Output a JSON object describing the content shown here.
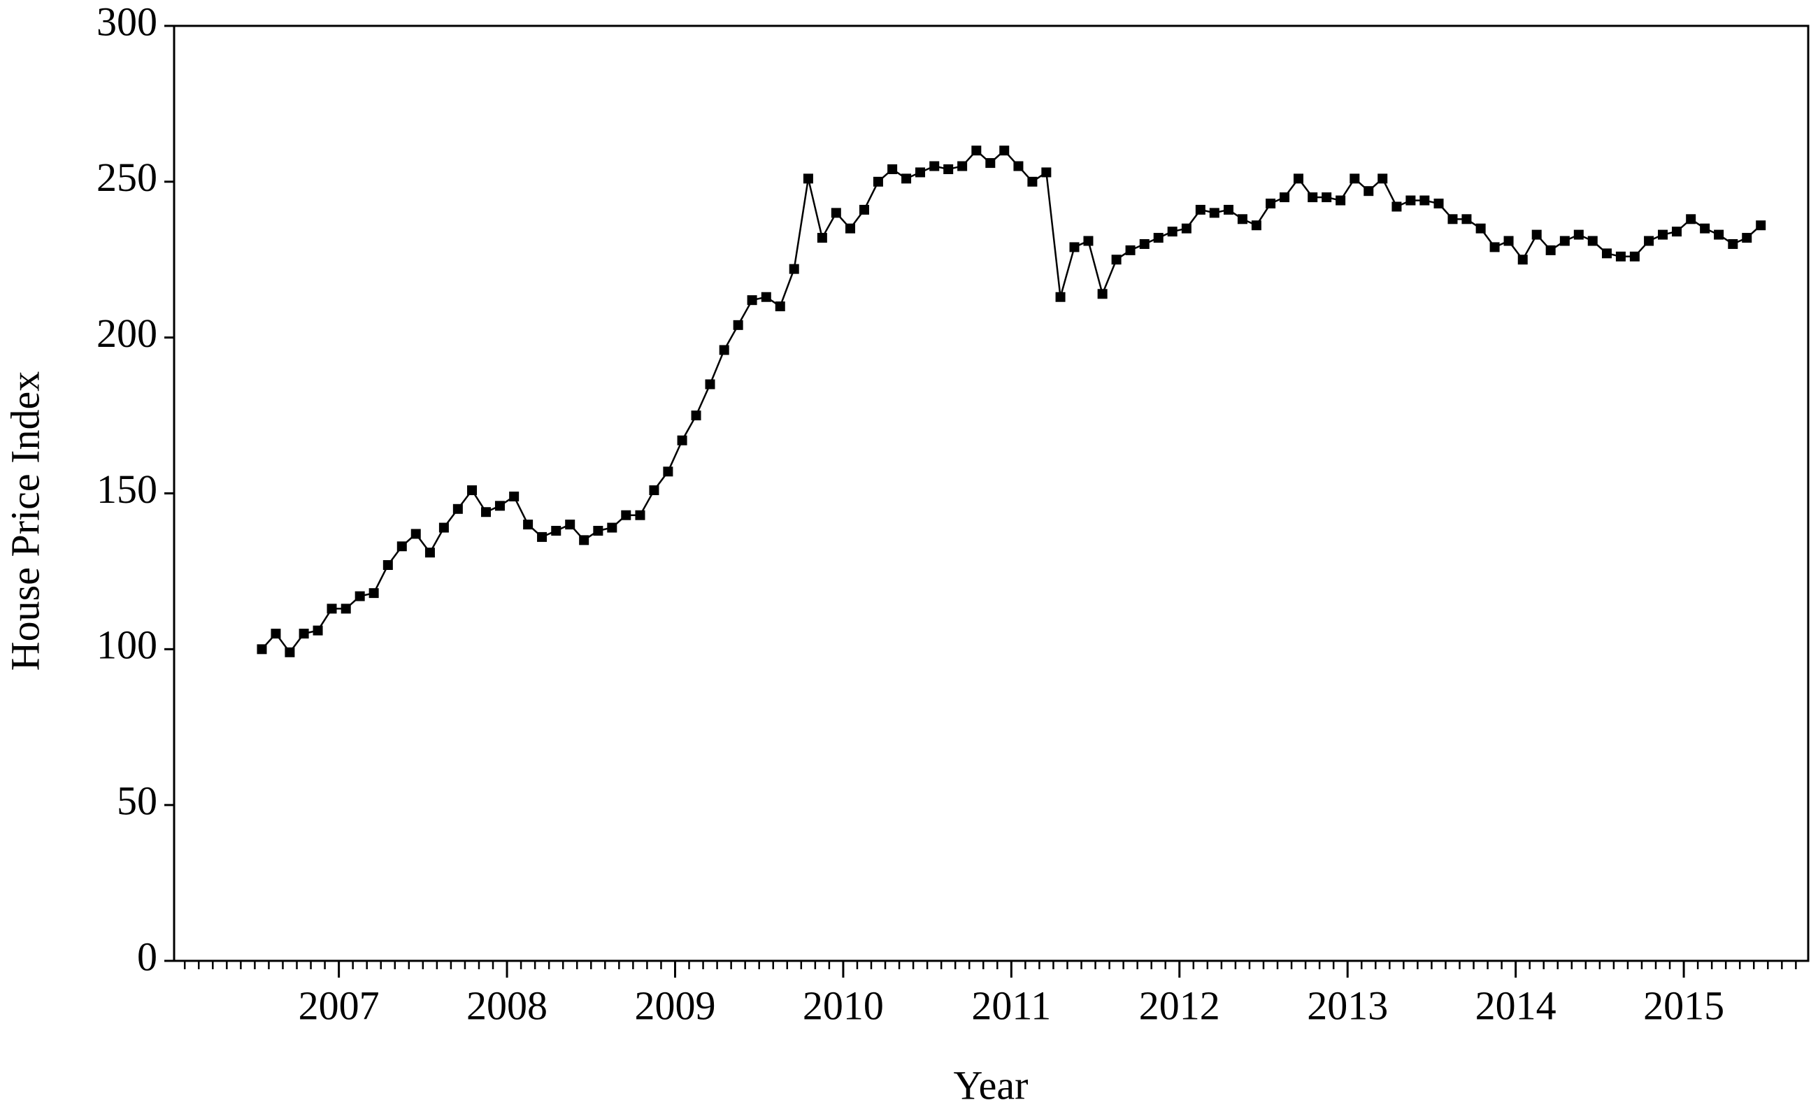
{
  "chart_data": {
    "type": "line",
    "x_label": "Year",
    "y_label": "House Price Index",
    "x": [
      2006.542,
      2006.625,
      2006.708,
      2006.792,
      2006.875,
      2006.958,
      2007.042,
      2007.125,
      2007.208,
      2007.292,
      2007.375,
      2007.458,
      2007.542,
      2007.625,
      2007.708,
      2007.792,
      2007.875,
      2007.958,
      2008.042,
      2008.125,
      2008.208,
      2008.292,
      2008.375,
      2008.458,
      2008.542,
      2008.625,
      2008.708,
      2008.792,
      2008.875,
      2008.958,
      2009.042,
      2009.125,
      2009.208,
      2009.292,
      2009.375,
      2009.458,
      2009.542,
      2009.625,
      2009.708,
      2009.792,
      2009.875,
      2009.958,
      2010.042,
      2010.125,
      2010.208,
      2010.292,
      2010.375,
      2010.458,
      2010.542,
      2010.625,
      2010.708,
      2010.792,
      2010.875,
      2010.958,
      2011.042,
      2011.125,
      2011.208,
      2011.292,
      2011.375,
      2011.458,
      2011.542,
      2011.625,
      2011.708,
      2011.792,
      2011.875,
      2011.958,
      2012.042,
      2012.125,
      2012.208,
      2012.292,
      2012.375,
      2012.458,
      2012.542,
      2012.625,
      2012.708,
      2012.792,
      2012.875,
      2012.958,
      2013.042,
      2013.125,
      2013.208,
      2013.292,
      2013.375,
      2013.458,
      2013.542,
      2013.625,
      2013.708,
      2013.792,
      2013.875,
      2013.958,
      2014.042,
      2014.125,
      2014.208,
      2014.292,
      2014.375,
      2014.458,
      2014.542,
      2014.625,
      2014.708,
      2014.792,
      2014.875,
      2014.958,
      2015.042,
      2015.125,
      2015.208,
      2015.292,
      2015.375,
      2015.458
    ],
    "series": [
      {
        "name": "House Price Index",
        "color": "#000000",
        "marker": "square",
        "values": [
          100,
          105,
          99,
          105,
          106,
          113,
          113,
          117,
          118,
          127,
          133,
          137,
          131,
          139,
          145,
          151,
          144,
          146,
          149,
          140,
          136,
          138,
          140,
          135,
          138,
          139,
          143,
          143,
          151,
          157,
          167,
          175,
          185,
          196,
          204,
          212,
          213,
          210,
          222,
          251,
          232,
          240,
          235,
          241,
          250,
          254,
          251,
          253,
          255,
          254,
          255,
          260,
          256,
          260,
          255,
          250,
          253,
          213,
          229,
          231,
          214,
          225,
          228,
          230,
          232,
          234,
          235,
          241,
          240,
          241,
          238,
          236,
          243,
          245,
          251,
          245,
          245,
          244,
          251,
          247,
          251,
          242,
          244,
          244,
          243,
          238,
          238,
          235,
          229,
          231,
          225,
          233,
          228,
          231,
          233,
          231,
          227,
          226,
          226,
          231,
          233,
          234,
          238,
          235,
          233,
          230,
          232,
          236
        ]
      }
    ],
    "xlim": [
      2006.02,
      2015.74
    ],
    "xticks": [
      2007,
      2008,
      2009,
      2010,
      2011,
      2012,
      2013,
      2014,
      2015
    ],
    "ylim": [
      0,
      300
    ],
    "yticks": [
      0,
      50,
      100,
      150,
      200,
      250,
      300
    ],
    "grid": false
  }
}
